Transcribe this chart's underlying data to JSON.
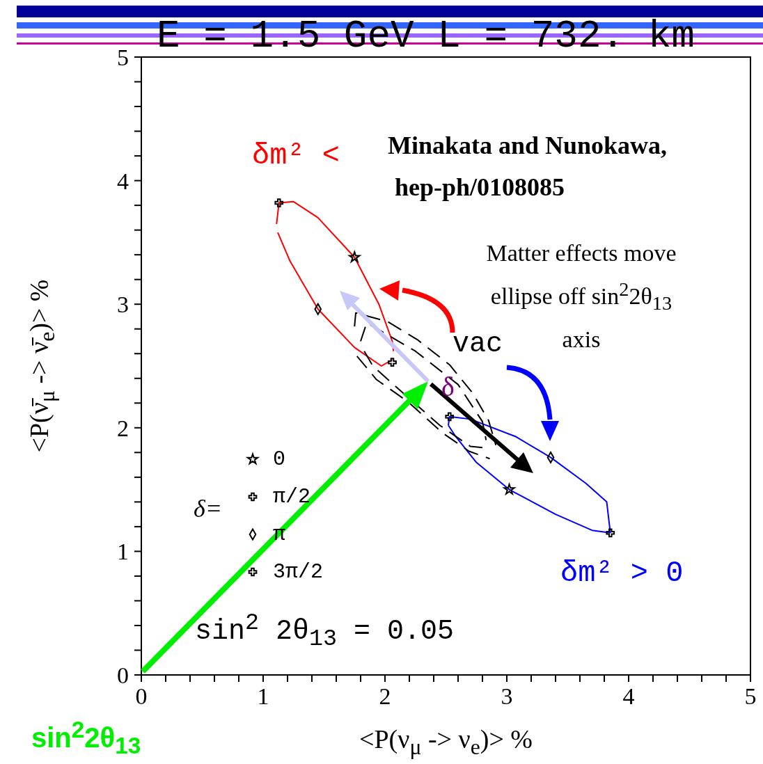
{
  "chart_data": {
    "type": "line",
    "title": "E = 1.5 GeV    L = 732. km",
    "xlabel": "<P(ν$_{μ}$ -> ν$_{e}$)> %",
    "ylabel": "<P(ν̄$_{μ}$ -> ν̄$_{e}$)> %",
    "legend_title": "δ=",
    "legend": "bottom left",
    "annotations": [
      "Minakata and Nunokawa,",
      "hep-ph/0108085",
      "Matter effects move ellipse off sin$^{2}$2θ$_{13}$ axis",
      "δ",
      "sin$^{2}$ 2θ$_{13}$ = 0.05",
      "sin$^{2}$2θ$_{13}$"
    ],
    "xlim": [
      0,
      5
    ],
    "ylim": [
      0,
      5
    ],
    "xticks": [
      0,
      {
        "value": 0.2,
        "label": null
      },
      {
        "value": 0.4,
        "label": null
      },
      {
        "value": 0.6,
        "label": null
      },
      {
        "value": 0.8,
        "label": null
      },
      1,
      {
        "value": 1.2,
        "label": null
      },
      {
        "value": 1.4,
        "label": null
      },
      {
        "value": 1.6,
        "label": null
      },
      {
        "value": 1.8,
        "label": null
      },
      2,
      {
        "value": 2.2,
        "label": null
      },
      {
        "value": 2.4,
        "label": null
      },
      {
        "value": 2.6,
        "label": null
      },
      {
        "value": 2.8,
        "label": null
      },
      3,
      {
        "value": 3.2,
        "label": null
      },
      {
        "value": 3.4,
        "label": null
      },
      {
        "value": 3.6,
        "label": null
      },
      {
        "value": 3.8,
        "label": null
      },
      4,
      {
        "value": 4.2,
        "label": null
      },
      {
        "value": 4.4,
        "label": null
      },
      {
        "value": 4.6,
        "label": null
      },
      {
        "value": 4.8,
        "label": null
      },
      5
    ],
    "yticks": [
      0,
      {
        "value": 0.2,
        "label": null
      },
      {
        "value": 0.4,
        "label": null
      },
      {
        "value": 0.6,
        "label": null
      },
      {
        "value": 0.8,
        "label": null
      },
      1,
      {
        "value": 1.2,
        "label": null
      },
      {
        "value": 1.4,
        "label": null
      },
      {
        "value": 1.6,
        "label": null
      },
      {
        "value": 1.8,
        "label": null
      },
      2,
      {
        "value": 2.2,
        "label": null
      },
      {
        "value": 2.4,
        "label": null
      },
      {
        "value": 2.6,
        "label": null
      },
      {
        "value": 2.8,
        "label": null
      },
      3,
      {
        "value": 3.2,
        "label": null
      },
      {
        "value": 3.4,
        "label": null
      },
      {
        "value": 3.6,
        "label": null
      },
      {
        "value": 3.8,
        "label": null
      },
      4,
      {
        "value": 4.2,
        "label": null
      },
      {
        "value": 4.4,
        "label": null
      },
      {
        "value": 4.6,
        "label": null
      },
      {
        "value": 4.8,
        "label": null
      },
      5
    ],
    "series": [
      {
        "type": "line",
        "name": "δm² <",
        "color": "#ff0000",
        "marker": "none",
        "line_style": "solid",
        "x": [
          1.11,
          1.13,
          1.25,
          1.45,
          1.75,
          1.95,
          2.06,
          2.07
        ],
        "values": [
          3.65,
          3.82,
          3.83,
          3.7,
          3.38,
          3.0,
          2.7,
          2.62
        ]
      },
      {
        "type": "line",
        "color": "#ff0000",
        "marker": "none",
        "line_style": "solid",
        "x": [
          1.12,
          1.22,
          1.45,
          1.75,
          1.97,
          2.06
        ],
        "values": [
          3.58,
          3.35,
          2.96,
          2.65,
          2.5,
          2.55
        ]
      },
      {
        "type": "line",
        "name": "δm² > 0",
        "color": "#0000ff",
        "marker": "none",
        "line_style": "solid",
        "x": [
          2.52,
          2.53,
          2.7,
          3.07,
          3.36,
          3.65,
          3.82,
          3.85
        ],
        "values": [
          2.02,
          2.09,
          2.07,
          1.93,
          1.76,
          1.55,
          1.4,
          1.15
        ]
      },
      {
        "type": "line",
        "color": "#0000ff",
        "marker": "none",
        "line_style": "solid",
        "x": [
          2.52,
          2.58,
          2.75,
          3.02,
          3.4,
          3.7,
          3.85
        ],
        "values": [
          2.02,
          1.93,
          1.72,
          1.5,
          1.3,
          1.17,
          1.15
        ]
      },
      {
        "type": "line",
        "name": "vac",
        "color": "#000000",
        "marker": "none",
        "line_style": "dashed",
        "x": [
          1.75,
          1.76,
          2.02,
          2.27,
          2.53,
          2.72,
          2.85,
          2.91
        ],
        "values": [
          2.82,
          2.93,
          2.86,
          2.71,
          2.51,
          2.28,
          2.06,
          1.86
        ]
      },
      {
        "type": "line",
        "color": "#000000",
        "marker": "none",
        "line_style": "dashed",
        "x": [
          1.77,
          1.93,
          2.19,
          2.47,
          2.69,
          2.86
        ],
        "values": [
          2.58,
          2.39,
          2.21,
          1.96,
          1.81,
          1.75
        ]
      },
      {
        "type": "line",
        "color": "#000000",
        "marker": "none",
        "line_style": "dashed",
        "x": [
          1.8,
          1.85,
          2.25,
          2.6,
          2.8,
          2.83
        ],
        "values": [
          2.7,
          2.85,
          2.62,
          2.35,
          2.05,
          1.9
        ]
      },
      {
        "type": "line",
        "color": "#000000",
        "marker": "none",
        "line_style": "dashed",
        "x": [
          1.83,
          1.9,
          2.15,
          2.45,
          2.7,
          2.8
        ],
        "values": [
          2.62,
          2.5,
          2.28,
          2.02,
          1.85,
          1.84
        ]
      },
      {
        "type": "scatter",
        "name": "0",
        "color": "#000000",
        "marker": "star",
        "x": [
          1.75,
          3.02
        ],
        "values": [
          3.38,
          1.5
        ]
      },
      {
        "type": "scatter",
        "name": "π/2",
        "color": "#000000",
        "marker": "cross",
        "x": [
          2.06,
          3.85
        ],
        "values": [
          2.53,
          1.15
        ]
      },
      {
        "type": "scatter",
        "name": "π",
        "color": "#000000",
        "marker": "diamond",
        "x": [
          1.45,
          3.36
        ],
        "values": [
          2.96,
          1.76
        ]
      },
      {
        "type": "scatter",
        "name": "3π/2",
        "color": "#000000",
        "marker": "cross",
        "x": [
          1.13,
          2.53
        ],
        "values": [
          3.82,
          2.09
        ]
      }
    ]
  }
}
